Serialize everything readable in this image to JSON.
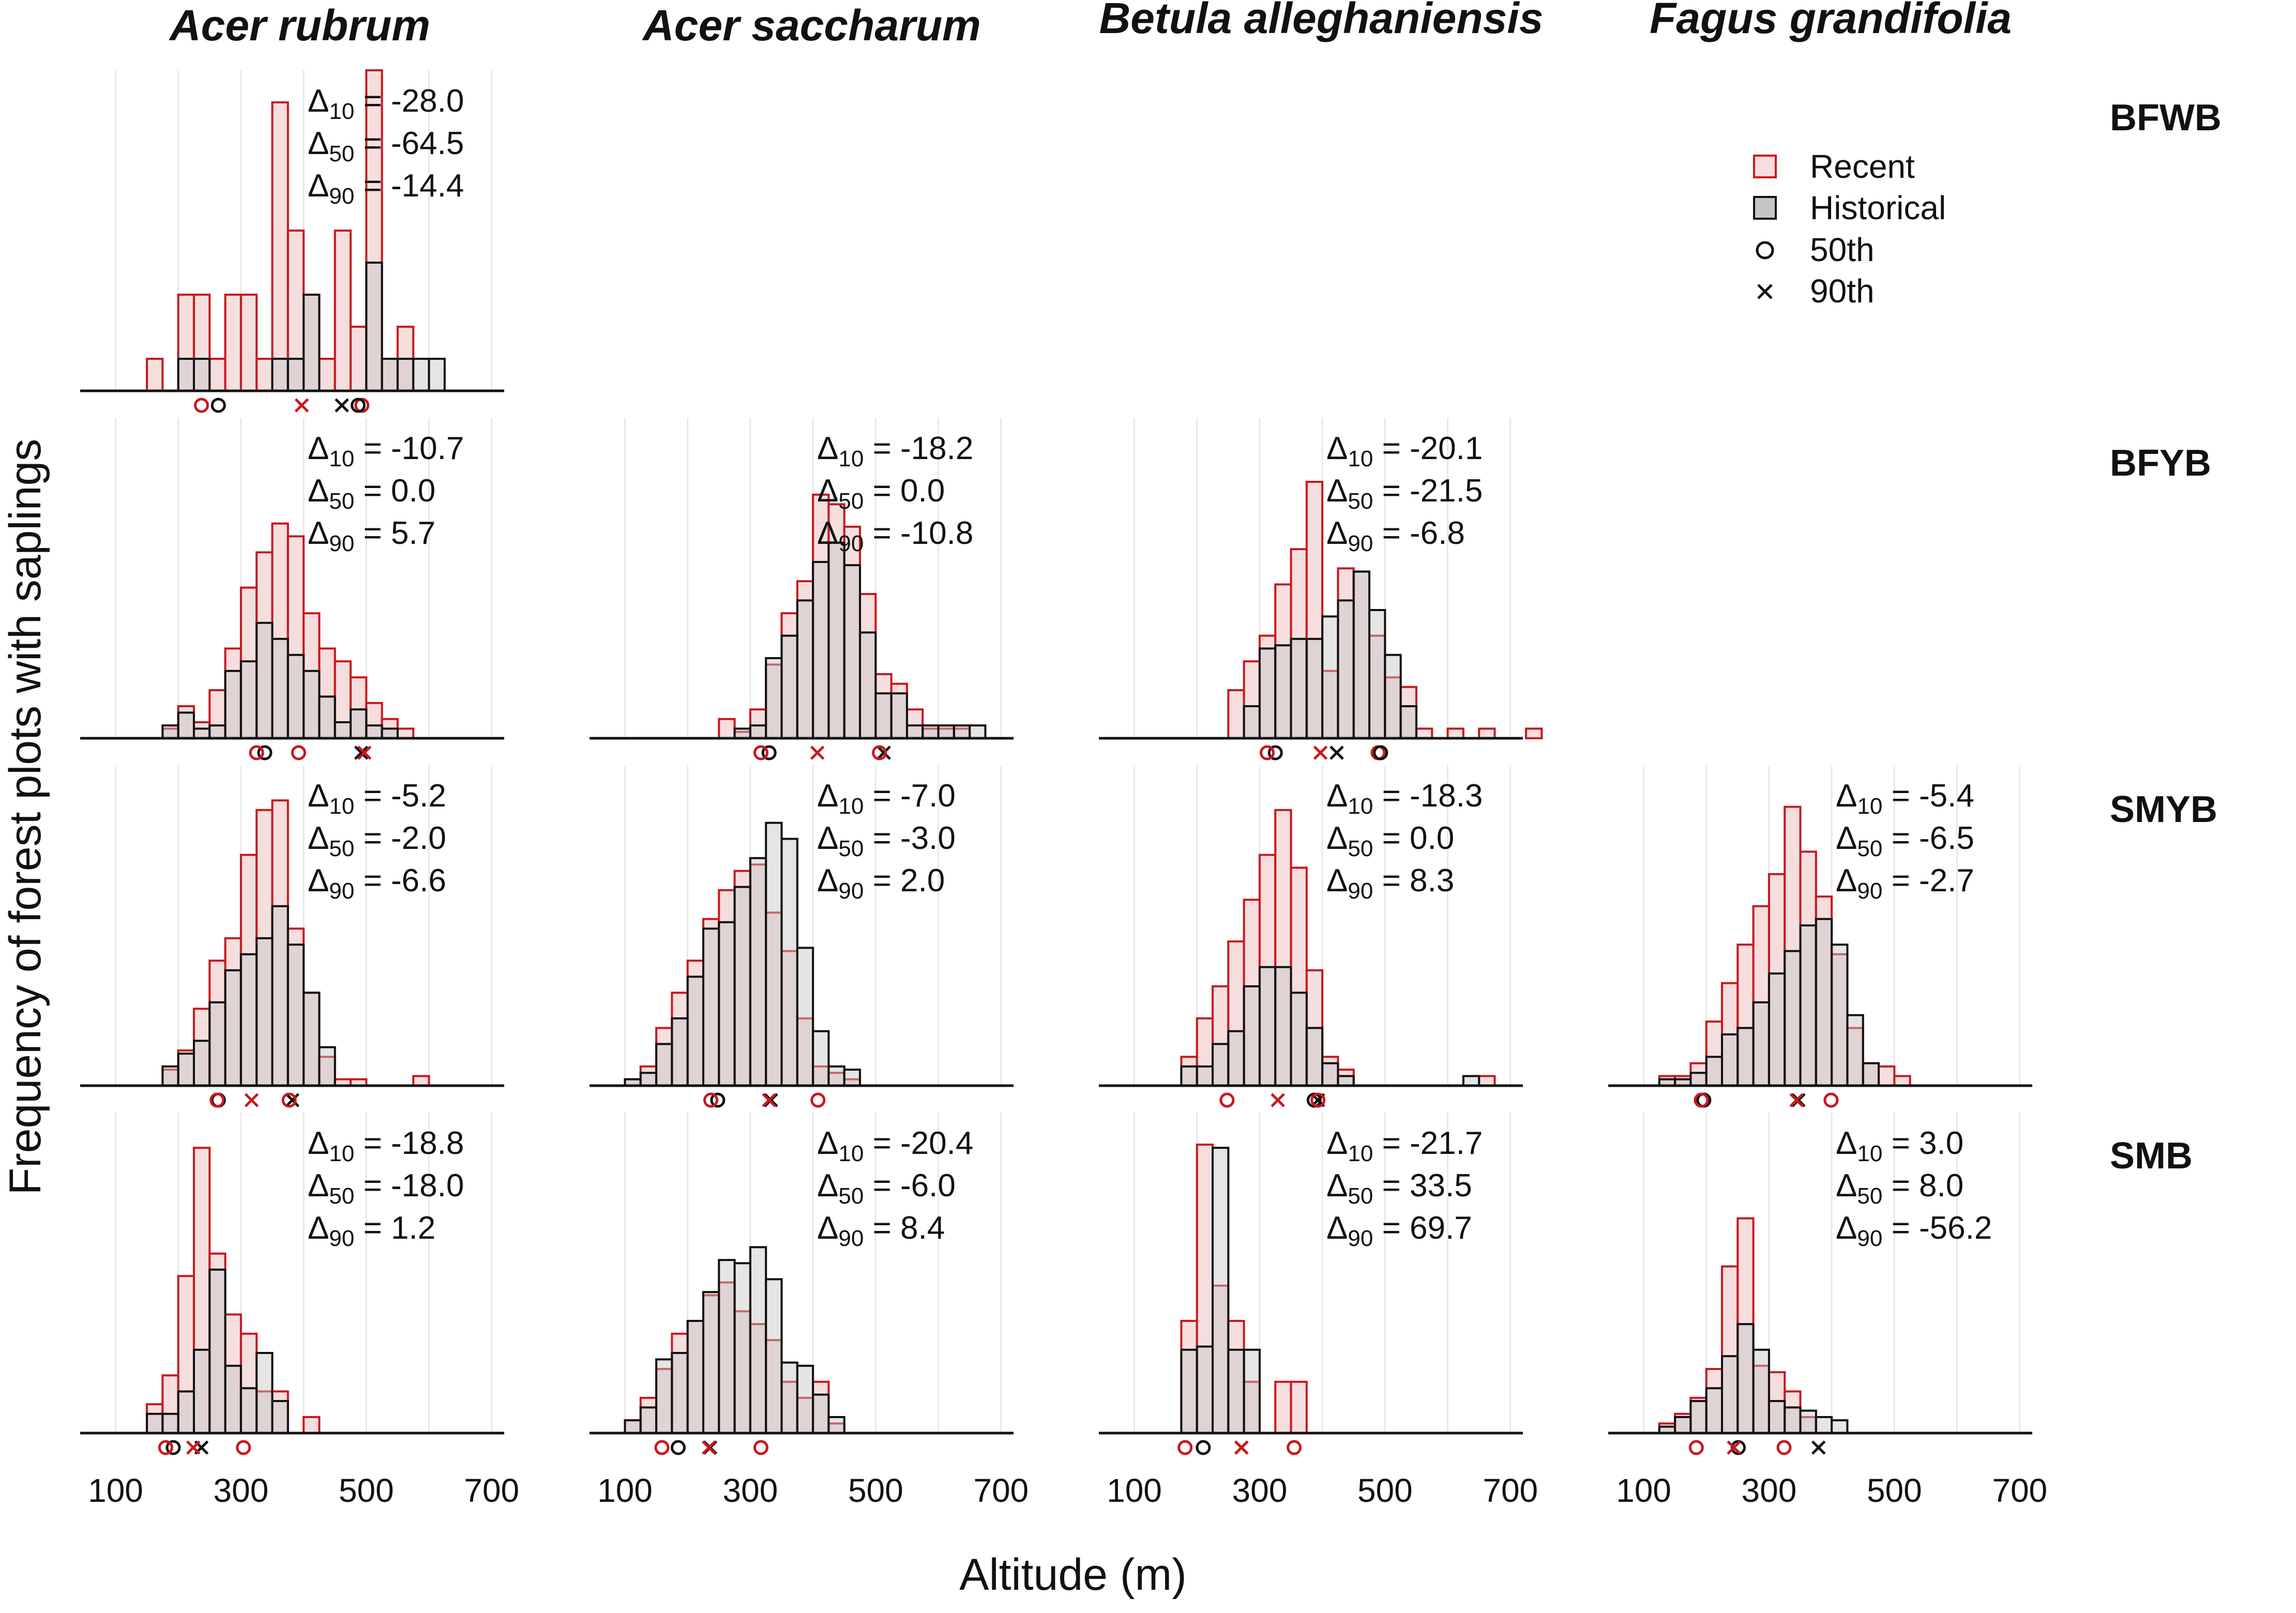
{
  "chart_data": {
    "type": "bar",
    "title": "",
    "xlabel": "Altitude (m)",
    "ylabel": "Frequency of forest plots with saplings",
    "xlim": [
      60,
      720
    ],
    "xticks": [
      100,
      300,
      500,
      700
    ],
    "bin_width": 25,
    "grid": "vertical lines at 100 m spacing",
    "legend_position": "top-right",
    "colors": {
      "recent_fill": "#f6dede",
      "recent_stroke": "#c8181e",
      "historical_fill": "#c6c6c6",
      "historical_stroke": "#111111",
      "overlap_fill": "#dccbcb",
      "grid": "#e8e8e8"
    },
    "legend": [
      {
        "label": "Recent",
        "symbol": "box-red"
      },
      {
        "label": "Historical",
        "symbol": "box-grey"
      },
      {
        "label": "50th",
        "symbol": "circle"
      },
      {
        "label": "90th",
        "symbol": "cross"
      }
    ],
    "columns": [
      "Acer rubrum",
      "Acer saccharum",
      "Betula alleghaniensis",
      "Fagus grandifolia"
    ],
    "rows": [
      "BFWB",
      "BFYB",
      "SMYB",
      "SMB"
    ],
    "panels": [
      {
        "row": "BFWB",
        "species": "Acer rubrum",
        "x0": 150,
        "ymax": 10,
        "recent": [
          1,
          0,
          3,
          3,
          1,
          3,
          3,
          1,
          9,
          5,
          3,
          1,
          5,
          2,
          10,
          1,
          2
        ],
        "historical": [
          0,
          0,
          1,
          1,
          0,
          0,
          0,
          0,
          1,
          1,
          3,
          0,
          0,
          0,
          4,
          1,
          1,
          1,
          1
        ],
        "markers": {
          "recent": {
            "p50": 237,
            "p90": 397
          },
          "historical": {
            "p50": 264,
            "p90": 461
          },
          "recent_p50_upper": 493,
          "historical_p50_upper": 487
        },
        "deltas": [
          "-28.0",
          "-64.5",
          "-14.4"
        ]
      },
      {
        "row": "BFYB",
        "species": "Acer rubrum",
        "x0": 175,
        "ymax": 10,
        "recent": [
          0.3,
          1,
          0.5,
          1.5,
          2.8,
          4.7,
          5.8,
          6.7,
          6.3,
          3.9,
          2.8,
          2.4,
          1.9,
          1.1,
          0.6,
          0.3
        ],
        "historical": [
          0.4,
          0.8,
          0.3,
          0.4,
          2.1,
          2.4,
          3.6,
          3.1,
          2.6,
          2.1,
          1.3,
          0.5,
          0.9,
          0.4,
          0.3,
          0
        ],
        "markers": {
          "recent": {
            "p50": 325,
            "p90": 497
          },
          "historical": {
            "p50": 338,
            "p90": 492
          },
          "recent_p90_center": 392
        },
        "deltas": [
          "-10.7",
          "0.0",
          "5.7"
        ]
      },
      {
        "row": "BFYB",
        "species": "Acer saccharum",
        "x0": 250,
        "ymax": 10,
        "recent": [
          0.6,
          0.2,
          0.9,
          2.3,
          3.9,
          4.9,
          7.6,
          7.3,
          6.6,
          4.5,
          2.0,
          1.7,
          0.9,
          0.3,
          0.3,
          0.3
        ],
        "historical": [
          0,
          0.3,
          0.4,
          2.5,
          3.2,
          4.3,
          5.5,
          6.1,
          5.4,
          3.3,
          1.4,
          1.4,
          0.4,
          0.4,
          0.4,
          0.4,
          0.4
        ],
        "markers": {
          "recent": {
            "p50": 317,
            "p90": 407
          },
          "historical": {
            "p50": 330,
            "p90": 513
          },
          "recent_p90_upper": 506
        },
        "deltas": [
          "-18.2",
          "0.0",
          "-10.8"
        ]
      },
      {
        "row": "BFYB",
        "species": "Betula alleghaniensis",
        "x0": 250,
        "ymax": 10,
        "recent": [
          1.5,
          2.4,
          3.2,
          4.8,
          5.9,
          8.0,
          2.1,
          5.3,
          5.2,
          3.2,
          1.9,
          1.6,
          0.3,
          0,
          0.3,
          0,
          0.3,
          0,
          0,
          0.3
        ],
        "historical": [
          0,
          1.0,
          2.8,
          2.9,
          3.1,
          3.1,
          3.8,
          4.3,
          5.2,
          4.0,
          2.6,
          1.0,
          0
        ],
        "markers": {
          "recent": {
            "p50": 312,
            "p90": 397
          },
          "historical": {
            "p50": 325,
            "p90": 423
          },
          "recent_p50_upper": 489,
          "historical_p50_upper": 493
        },
        "deltas": [
          "-20.1",
          "-21.5",
          "-6.8"
        ]
      },
      {
        "row": "SMYB",
        "species": "Acer rubrum",
        "x0": 175,
        "ymax": 10,
        "recent": [
          0.5,
          1.1,
          2.4,
          3.9,
          4.6,
          7.2,
          8.6,
          8.9,
          4.9,
          2.9,
          0.9,
          0.2,
          0.2,
          0,
          0,
          0,
          0.3
        ],
        "historical": [
          0.6,
          1.0,
          1.4,
          2.6,
          3.6,
          4.1,
          4.6,
          5.6,
          4.4,
          2.9,
          1.2,
          0
        ],
        "markers": {
          "recent": {
            "p50": 262,
            "p90": 317
          },
          "historical": {
            "p50": 264,
            "p90": 382
          },
          "recent_p90_upper": 377
        },
        "deltas": [
          "-5.2",
          "-2.0",
          "-6.6"
        ]
      },
      {
        "row": "SMYB",
        "species": "Acer saccharum",
        "x0": 100,
        "ymax": 10,
        "recent": [
          0.2,
          0.6,
          1.8,
          2.9,
          3.9,
          5.2,
          6.1,
          6.7,
          6.9,
          5.4,
          4.2,
          2.1,
          0.6,
          0.4,
          0.2
        ],
        "historical": [
          0.2,
          0.4,
          1.3,
          2.1,
          3.4,
          4.9,
          5.1,
          6.2,
          7.1,
          8.2,
          7.7,
          4.3,
          1.7,
          0.6,
          0.5
        ],
        "markers": {
          "recent": {
            "p50": 237,
            "p90": 330
          },
          "historical": {
            "p50": 248,
            "p90": 333
          },
          "recent_p90_upper": 408
        },
        "deltas": [
          "-7.0",
          "-3.0",
          "2.0"
        ]
      },
      {
        "row": "SMYB",
        "species": "Betula alleghaniensis",
        "x0": 175,
        "ymax": 10,
        "recent": [
          0.9,
          2.1,
          3.1,
          4.5,
          5.8,
          7.2,
          8.6,
          6.8,
          3.6,
          0.9,
          0.5,
          0,
          0,
          0,
          0,
          0,
          0,
          0,
          0,
          0.3
        ],
        "historical": [
          0.6,
          0.6,
          1.3,
          1.7,
          3.1,
          3.7,
          3.7,
          2.9,
          1.8,
          0.7,
          0.3,
          0,
          0,
          0,
          0,
          0,
          0,
          0,
          0.3,
          0
        ],
        "markers": {
          "recent": {
            "p50": 248,
            "p90": 329
          },
          "historical": {
            "p50": 387,
            "p90": 393
          },
          "recent_p50_upper": 393
        },
        "deltas": [
          "-18.3",
          "0.0",
          "8.3"
        ]
      },
      {
        "row": "SMYB",
        "species": "Fagus grandifolia",
        "x0": 125,
        "ymax": 10,
        "recent": [
          0.3,
          0.3,
          0.7,
          2.0,
          3.2,
          4.4,
          5.6,
          6.6,
          8.7,
          7.3,
          5.9,
          4.1,
          1.8,
          0.7,
          0.6,
          0.3
        ],
        "historical": [
          0.2,
          0.2,
          0.4,
          0.9,
          1.6,
          1.8,
          2.6,
          3.5,
          4.2,
          5.0,
          5.2,
          4.4,
          2.2,
          0.7,
          0
        ],
        "markers": {
          "recent": {
            "p50": 192,
            "p90": 344
          },
          "historical": {
            "p50": 196,
            "p90": 347
          },
          "recent_p90_upper": 399
        },
        "deltas": [
          "-5.4",
          "-6.5",
          "-2.7"
        ]
      },
      {
        "row": "SMB",
        "species": "Acer rubrum",
        "x0": 150,
        "ymax": 10,
        "recent": [
          0.9,
          1.8,
          4.9,
          8.9,
          5.6,
          3.7,
          3.1,
          1.3,
          1.3,
          0,
          0.5
        ],
        "historical": [
          0.6,
          0.6,
          1.3,
          2.6,
          5.1,
          2.1,
          1.4,
          2.5,
          1.0,
          0
        ],
        "markers": {
          "recent": {
            "p50": 180,
            "p90": 224
          },
          "historical": {
            "p50": 192,
            "p90": 237
          },
          "recent_p50_upper": 304
        },
        "deltas": [
          "-18.8",
          "-18.0",
          "1.2"
        ]
      },
      {
        "row": "SMB",
        "species": "Acer saccharum",
        "x0": 100,
        "ymax": 10,
        "recent": [
          0.4,
          1.1,
          2.0,
          3.1,
          3.5,
          4.3,
          4.7,
          3.8,
          3.4,
          2.9,
          1.6,
          1.1,
          1.6,
          0.3
        ],
        "historical": [
          0.4,
          0.8,
          2.3,
          2.5,
          3.5,
          4.4,
          5.4,
          5.3,
          5.8,
          4.8,
          2.2,
          2.1,
          1.2,
          0.5
        ],
        "markers": {
          "recent": {
            "p50": 159,
            "p90": 234
          },
          "historical": {
            "p50": 185,
            "p90": 236
          },
          "recent_p50_upper": 317
        },
        "deltas": [
          "-20.4",
          "-6.0",
          "8.4"
        ]
      },
      {
        "row": "SMB",
        "species": "Betula alleghaniensis",
        "x0": 175,
        "ymax": 10,
        "recent": [
          3.5,
          9.0,
          4.6,
          3.5,
          1.6,
          0,
          1.6,
          1.6
        ],
        "historical": [
          2.6,
          2.7,
          8.9,
          2.6,
          2.6,
          0,
          0,
          0
        ],
        "markers": {
          "recent": {
            "p50": 181,
            "p90": 271
          },
          "historical": {
            "p50": 210,
            "p90": 271
          },
          "recent_p50_upper": 355
        },
        "deltas": [
          "-21.7",
          "33.5",
          "69.7"
        ]
      },
      {
        "row": "SMB",
        "species": "Fagus grandifolia",
        "x0": 125,
        "ymax": 10,
        "recent": [
          0.3,
          0.6,
          1.1,
          2.0,
          5.2,
          6.7,
          2.1,
          1.9,
          1.3,
          0.5
        ],
        "historical": [
          0.2,
          0.5,
          1.0,
          1.4,
          2.4,
          3.4,
          2.6,
          1.0,
          0.8,
          0.7,
          0.5,
          0.4,
          0
        ],
        "markers": {
          "recent": {
            "p50": 184,
            "p90": 244
          },
          "historical": {
            "p50": 251,
            "p90": 379
          },
          "recent_p50_upper": 324
        },
        "deltas": [
          "3.0",
          "8.0",
          "-56.2"
        ]
      }
    ]
  }
}
